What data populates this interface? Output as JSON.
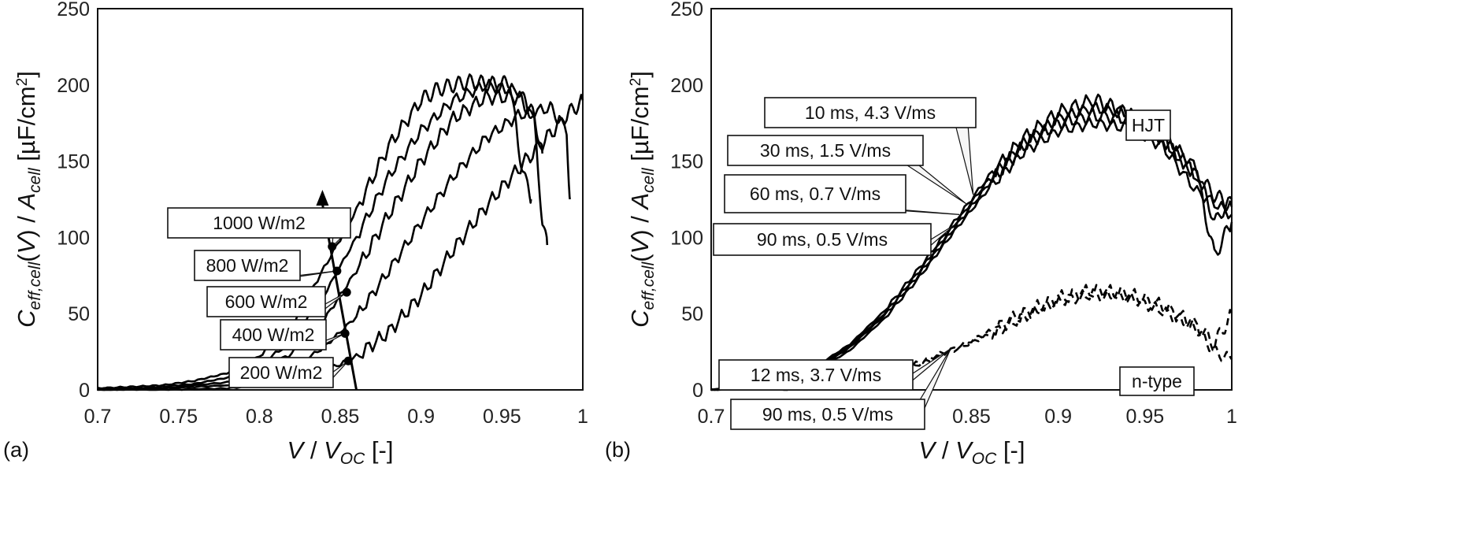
{
  "chart_data": [
    {
      "type": "line",
      "panel_label": "(a)",
      "xlabel": "V / V_OC [-]",
      "ylabel": "C_eff,cell(V) / A_cell [µF/cm²]",
      "xlim": [
        0.7,
        1.0
      ],
      "ylim": [
        0,
        250
      ],
      "x_ticks": [
        "0.7",
        "0.75",
        "0.8",
        "0.85",
        "0.9",
        "0.95",
        "1"
      ],
      "y_ticks": [
        "0",
        "50",
        "100",
        "150",
        "200",
        "250"
      ],
      "grid": false,
      "series": [
        {
          "name": "1000 W/m2",
          "color": "#000000",
          "x": [
            0.7,
            0.72,
            0.74,
            0.76,
            0.78,
            0.8,
            0.82,
            0.84,
            0.86,
            0.88,
            0.9,
            0.91,
            0.92,
            0.93,
            0.94,
            0.95,
            0.955,
            0.96,
            0.965,
            0.968
          ],
          "y": [
            1,
            2,
            3,
            6,
            11,
            22,
            42,
            80,
            118,
            160,
            190,
            197,
            200,
            202,
            201,
            200,
            203,
            160,
            135,
            125
          ]
        },
        {
          "name": "800 W/m2",
          "color": "#000000",
          "x": [
            0.7,
            0.72,
            0.74,
            0.76,
            0.78,
            0.8,
            0.82,
            0.84,
            0.86,
            0.88,
            0.9,
            0.92,
            0.94,
            0.96,
            0.965,
            0.97,
            0.975,
            0.978
          ],
          "y": [
            1,
            1,
            2,
            4,
            8,
            16,
            32,
            62,
            100,
            140,
            170,
            190,
            200,
            196,
            188,
            175,
            110,
            95
          ]
        },
        {
          "name": "600 W/m2",
          "color": "#000000",
          "x": [
            0.7,
            0.74,
            0.78,
            0.8,
            0.82,
            0.84,
            0.86,
            0.88,
            0.9,
            0.92,
            0.94,
            0.96,
            0.97,
            0.975
          ],
          "y": [
            0,
            1,
            5,
            11,
            24,
            46,
            78,
            115,
            150,
            178,
            192,
            192,
            180,
            155
          ]
        },
        {
          "name": "400 W/m2",
          "color": "#000000",
          "x": [
            0.7,
            0.74,
            0.78,
            0.8,
            0.82,
            0.84,
            0.86,
            0.88,
            0.9,
            0.92,
            0.94,
            0.96,
            0.98,
            0.99,
            0.992
          ],
          "y": [
            0,
            1,
            3,
            6,
            14,
            28,
            48,
            78,
            110,
            140,
            165,
            180,
            185,
            170,
            125
          ]
        },
        {
          "name": "200 W/m2",
          "color": "#000000",
          "x": [
            0.7,
            0.74,
            0.78,
            0.8,
            0.82,
            0.84,
            0.86,
            0.88,
            0.9,
            0.92,
            0.94,
            0.96,
            0.975,
            0.99,
            1.0
          ],
          "y": [
            0,
            0,
            1,
            3,
            6,
            12,
            22,
            38,
            62,
            92,
            120,
            145,
            162,
            180,
            190
          ]
        }
      ],
      "annotations": [
        {
          "text": "1000 W/m2",
          "x": 0.845,
          "y": 94
        },
        {
          "text": "800 W/m2",
          "x": 0.848,
          "y": 78
        },
        {
          "text": "600 W/m2",
          "x": 0.854,
          "y": 64
        },
        {
          "text": "400 W/m2",
          "x": 0.853,
          "y": 37
        },
        {
          "text": "200 W/m2",
          "x": 0.855,
          "y": 19
        }
      ],
      "arrow": {
        "from": [
          0.86,
          0
        ],
        "to": [
          0.839,
          125
        ]
      }
    },
    {
      "type": "line",
      "panel_label": "(b)",
      "xlabel": "V / V_OC [-]",
      "ylabel": "C_eff,cell(V) / A_cell [µF/cm²]",
      "xlim": [
        0.7,
        1.0
      ],
      "ylim": [
        0,
        250
      ],
      "x_ticks": [
        "0.7",
        "0.75",
        "0.8",
        "0.85",
        "0.9",
        "0.95",
        "1"
      ],
      "y_ticks": [
        "0",
        "50",
        "100",
        "150",
        "200",
        "250"
      ],
      "grid": false,
      "groups": [
        "HJT",
        "n-type"
      ],
      "series": [
        {
          "name": "10 ms, 4.3 V/ms",
          "group": "HJT",
          "style": "solid",
          "x": [
            0.7,
            0.72,
            0.74,
            0.76,
            0.78,
            0.8,
            0.82,
            0.84,
            0.86,
            0.88,
            0.9,
            0.92,
            0.93,
            0.94,
            0.96,
            0.98,
            0.99,
            1.0
          ],
          "y": [
            0,
            2,
            6,
            15,
            30,
            52,
            80,
            110,
            140,
            165,
            182,
            190,
            186,
            180,
            165,
            140,
            128,
            120
          ]
        },
        {
          "name": "30 ms, 1.5 V/ms",
          "group": "HJT",
          "style": "solid",
          "x": [
            0.7,
            0.72,
            0.74,
            0.76,
            0.78,
            0.8,
            0.82,
            0.84,
            0.86,
            0.88,
            0.9,
            0.92,
            0.94,
            0.96,
            0.98,
            0.99,
            1.0
          ],
          "y": [
            0,
            2,
            6,
            14,
            29,
            50,
            78,
            108,
            138,
            162,
            178,
            185,
            182,
            168,
            145,
            110,
            125
          ]
        },
        {
          "name": "60 ms, 0.7 V/ms",
          "group": "HJT",
          "style": "solid",
          "x": [
            0.7,
            0.72,
            0.74,
            0.76,
            0.78,
            0.8,
            0.82,
            0.84,
            0.86,
            0.88,
            0.9,
            0.92,
            0.94,
            0.96,
            0.98,
            0.99,
            1.0
          ],
          "y": [
            0,
            2,
            5,
            13,
            28,
            49,
            76,
            106,
            135,
            160,
            175,
            180,
            178,
            165,
            140,
            88,
            110
          ]
        },
        {
          "name": "90 ms, 0.5 V/ms",
          "group": "HJT",
          "style": "solid",
          "x": [
            0.7,
            0.72,
            0.74,
            0.76,
            0.78,
            0.8,
            0.82,
            0.84,
            0.86,
            0.88,
            0.9,
            0.92,
            0.94,
            0.96,
            0.98,
            1.0
          ],
          "y": [
            0,
            1,
            5,
            12,
            26,
            47,
            74,
            104,
            132,
            156,
            170,
            175,
            172,
            160,
            130,
            115
          ]
        },
        {
          "name": "12 ms, 3.7 V/ms",
          "group": "n-type",
          "style": "dashed",
          "x": [
            0.74,
            0.76,
            0.78,
            0.8,
            0.82,
            0.84,
            0.86,
            0.88,
            0.9,
            0.92,
            0.94,
            0.96,
            0.98,
            0.99,
            1.0
          ],
          "y": [
            0,
            2,
            5,
            10,
            18,
            27,
            38,
            50,
            60,
            65,
            63,
            55,
            42,
            30,
            50
          ]
        },
        {
          "name": "90 ms, 0.5 V/ms",
          "group": "n-type",
          "style": "dashed",
          "x": [
            0.74,
            0.76,
            0.78,
            0.8,
            0.82,
            0.84,
            0.86,
            0.88,
            0.9,
            0.92,
            0.94,
            0.96,
            0.98,
            0.99,
            1.0
          ],
          "y": [
            0,
            1,
            4,
            9,
            17,
            26,
            36,
            48,
            58,
            63,
            61,
            52,
            40,
            25,
            20
          ]
        }
      ],
      "annotations": [
        {
          "text": "10 ms, 4.3 V/ms",
          "x": 0.851,
          "y": 128
        },
        {
          "text": "30 ms, 1.5 V/ms",
          "x": 0.847,
          "y": 122
        },
        {
          "text": "60 ms, 0.7 V/ms",
          "x": 0.843,
          "y": 115
        },
        {
          "text": "90 ms, 0.5 V/ms",
          "x": 0.84,
          "y": 108
        },
        {
          "text": "HJT",
          "x": 0.918,
          "y": 174
        },
        {
          "text": "n-type",
          "x": 0.975,
          "y": 50
        },
        {
          "text": "12 ms, 3.7 V/ms",
          "x": 0.838,
          "y": 27
        },
        {
          "text": "90 ms, 0.5 V/ms",
          "x": 0.838,
          "y": 27
        }
      ]
    }
  ]
}
